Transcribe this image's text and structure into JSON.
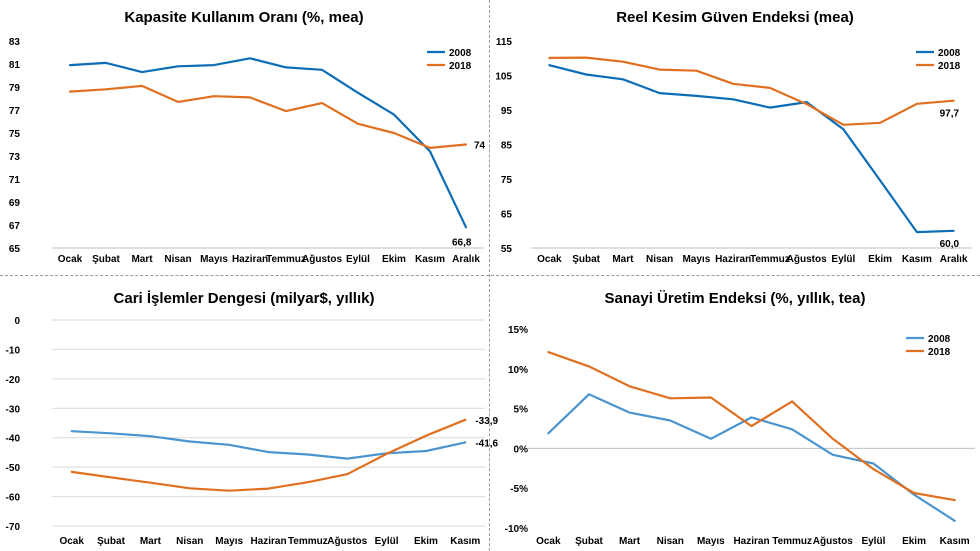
{
  "colors": {
    "blue_dark": "#0d6db6",
    "blue_light": "#4a94cf",
    "orange": "#e07020"
  },
  "chart_data": [
    {
      "type": "line",
      "title": "Kapasite Kullanım Oranı (%, mea)",
      "categories": [
        "Ocak",
        "Şubat",
        "Mart",
        "Nisan",
        "Mayıs",
        "Haziran",
        "Temmuz",
        "Ağustos",
        "Eylül",
        "Ekim",
        "Kasım",
        "Aralık"
      ],
      "ylim": [
        65,
        83
      ],
      "yticks": [
        65,
        67,
        69,
        71,
        73,
        75,
        77,
        79,
        81,
        83
      ],
      "ytick_labels": [
        "65",
        "67",
        "69",
        "71",
        "73",
        "75",
        "77",
        "79",
        "81",
        "83"
      ],
      "grid": false,
      "legend_position": "top-right",
      "series": [
        {
          "name": "2008",
          "color": "#0d6db6",
          "values": [
            80.9,
            81.1,
            80.3,
            80.8,
            80.9,
            81.5,
            80.7,
            80.5,
            78.5,
            76.6,
            73.4,
            66.8
          ]
        },
        {
          "name": "2018",
          "color": "#e07020",
          "values": [
            78.6,
            78.8,
            79.1,
            77.7,
            78.2,
            78.1,
            76.9,
            77.6,
            75.8,
            75.0,
            73.7,
            74.0
          ]
        }
      ],
      "end_labels": [
        {
          "series": 1,
          "text": "74"
        },
        {
          "series": 0,
          "text": "66,8"
        }
      ]
    },
    {
      "type": "line",
      "title": "Reel Kesim Güven Endeksi (mea)",
      "categories": [
        "Ocak",
        "Şubat",
        "Mart",
        "Nisan",
        "Mayıs",
        "Haziran",
        "Temmuz",
        "Ağustos",
        "Eylül",
        "Ekim",
        "Kasım",
        "Aralık"
      ],
      "ylim": [
        55,
        115
      ],
      "yticks": [
        55,
        65,
        75,
        85,
        95,
        105,
        115
      ],
      "ytick_labels": [
        "55",
        "65",
        "75",
        "85",
        "95",
        "105",
        "115"
      ],
      "grid": false,
      "legend_position": "top-right",
      "series": [
        {
          "name": "2008",
          "color": "#0d6db6",
          "values": [
            108.0,
            105.3,
            103.9,
            99.9,
            99.1,
            98.1,
            95.7,
            97.3,
            89.4,
            74.6,
            59.6,
            60.0
          ]
        },
        {
          "name": "2018",
          "color": "#e07020",
          "values": [
            110.1,
            110.2,
            109.0,
            106.7,
            106.4,
            102.6,
            101.4,
            96.7,
            90.7,
            91.3,
            96.8,
            97.7
          ]
        }
      ],
      "end_labels": [
        {
          "series": 1,
          "text": "97,7"
        },
        {
          "series": 0,
          "text": "60,0"
        }
      ]
    },
    {
      "type": "line",
      "title": "Cari İşlemler Dengesi (milyar$, yıllık)",
      "categories": [
        "Ocak",
        "Şubat",
        "Mart",
        "Nisan",
        "Mayıs",
        "Haziran",
        "Temmuz",
        "Ağustos",
        "Eylül",
        "Ekim",
        "Kasım"
      ],
      "ylim": [
        -70,
        0
      ],
      "yticks": [
        -70,
        -60,
        -50,
        -40,
        -30,
        -20,
        -10,
        0
      ],
      "ytick_labels": [
        "-70",
        "-60",
        "-50",
        "-40",
        "-30",
        "-20",
        "-10",
        "0"
      ],
      "grid": true,
      "legend_position": "none",
      "series": [
        {
          "color": "#4a94cf",
          "values": [
            -37.8,
            -38.5,
            -39.5,
            -41.3,
            -42.4,
            -44.9,
            -45.7,
            -47.1,
            -45.3,
            -44.5,
            -41.6
          ]
        },
        {
          "color": "#e07020",
          "values": [
            -51.6,
            -53.5,
            -55.3,
            -57.2,
            -58.0,
            -57.3,
            -55.1,
            -52.4,
            -45.5,
            -39.3,
            -33.9
          ]
        }
      ],
      "end_labels": [
        {
          "series": 1,
          "text": "-33,9"
        },
        {
          "series": 0,
          "text": "-41,6"
        }
      ]
    },
    {
      "type": "line",
      "title": "Sanayi Üretim Endeksi (%, yıllık, tea)",
      "categories": [
        "Ocak",
        "Şubat",
        "Mart",
        "Nisan",
        "Mayıs",
        "Haziran",
        "Temmuz",
        "Ağustos",
        "Eylül",
        "Ekim",
        "Kasım"
      ],
      "ylim": [
        -10,
        15
      ],
      "yticks": [
        -10,
        -5,
        0,
        5,
        10,
        15
      ],
      "ytick_labels": [
        "-10%",
        "-5%",
        "0%",
        "5%",
        "10%",
        "15%"
      ],
      "grid": false,
      "zero_line": true,
      "legend_position": "top-right",
      "series": [
        {
          "name": "2008",
          "color": "#4a94cf",
          "values": [
            1.9,
            6.8,
            4.5,
            3.5,
            1.2,
            3.9,
            2.4,
            -0.8,
            -1.9,
            -5.8,
            -9.1
          ]
        },
        {
          "name": "2018",
          "color": "#e07020",
          "values": [
            12.1,
            10.3,
            7.8,
            6.3,
            6.4,
            2.8,
            5.9,
            1.2,
            -2.6,
            -5.6,
            -6.5
          ]
        }
      ],
      "end_labels": []
    }
  ]
}
